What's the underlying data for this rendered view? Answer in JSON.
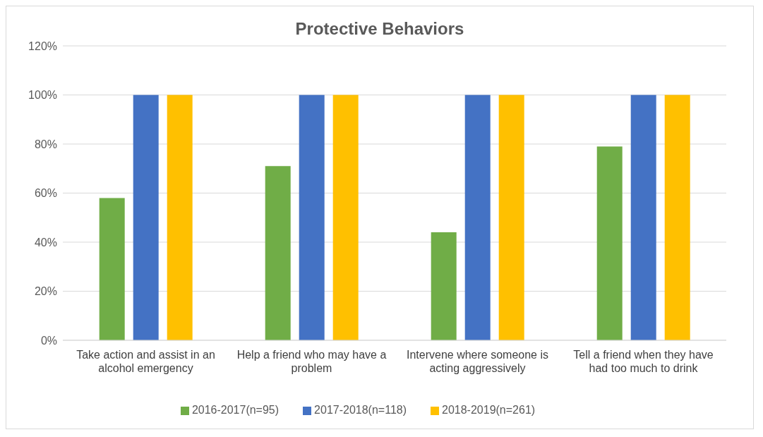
{
  "chart_data": {
    "type": "bar",
    "title": "Protective Behaviors",
    "categories": [
      "Take action and assist in an alcohol emergency",
      "Help a friend who may have a problem",
      "Intervene where someone is acting aggressively",
      "Tell a friend when they have had too much to drink"
    ],
    "series": [
      {
        "name": "2016-2017(n=95)",
        "color": "#70ad47",
        "values": [
          58,
          71,
          44,
          79
        ]
      },
      {
        "name": "2017-2018(n=118)",
        "color": "#4472c4",
        "values": [
          100,
          100,
          100,
          100
        ]
      },
      {
        "name": "2018-2019(n=261)",
        "color": "#ffc000",
        "values": [
          100,
          100,
          100,
          100
        ]
      }
    ],
    "ylim": [
      0,
      120
    ],
    "yticks": [
      {
        "value": 0,
        "label": "0%"
      },
      {
        "value": 20,
        "label": "20%"
      },
      {
        "value": 40,
        "label": "40%"
      },
      {
        "value": 60,
        "label": "60%"
      },
      {
        "value": 80,
        "label": "80%"
      },
      {
        "value": 100,
        "label": "100%"
      },
      {
        "value": 120,
        "label": "120%"
      }
    ],
    "grid": "y",
    "legend": "bottom"
  }
}
